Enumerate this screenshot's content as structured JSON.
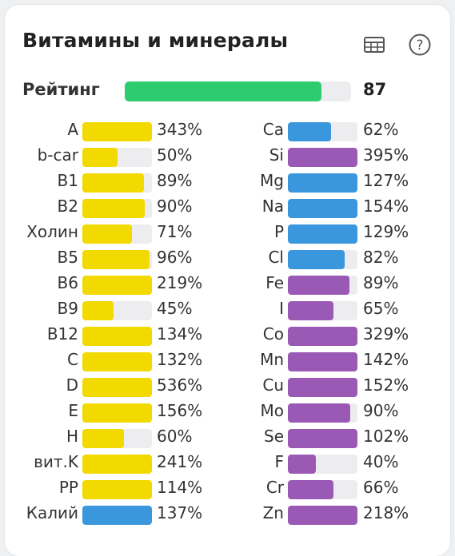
{
  "title": "Витамины и минералы",
  "icons": {
    "table": "table-icon",
    "help": "help-icon"
  },
  "colors": {
    "vitamin": "#f2d900",
    "blue": "#3a96dd",
    "purple": "#9b59b6",
    "rating": "#2ecc71",
    "track": "#ededef"
  },
  "rating": {
    "label": "Рейтинг",
    "value": "87",
    "fraction": 0.87
  },
  "vitamins": [
    {
      "label": "A",
      "pct": "343%",
      "fill": 1.0,
      "color": "yellow"
    },
    {
      "label": "b-car",
      "pct": "50%",
      "fill": 0.5,
      "color": "yellow"
    },
    {
      "label": "B1",
      "pct": "89%",
      "fill": 0.89,
      "color": "yellow"
    },
    {
      "label": "B2",
      "pct": "90%",
      "fill": 0.9,
      "color": "yellow"
    },
    {
      "label": "Холин",
      "pct": "71%",
      "fill": 0.71,
      "color": "yellow"
    },
    {
      "label": "B5",
      "pct": "96%",
      "fill": 0.96,
      "color": "yellow"
    },
    {
      "label": "B6",
      "pct": "219%",
      "fill": 1.0,
      "color": "yellow"
    },
    {
      "label": "B9",
      "pct": "45%",
      "fill": 0.45,
      "color": "yellow"
    },
    {
      "label": "B12",
      "pct": "134%",
      "fill": 1.0,
      "color": "yellow"
    },
    {
      "label": "C",
      "pct": "132%",
      "fill": 1.0,
      "color": "yellow"
    },
    {
      "label": "D",
      "pct": "536%",
      "fill": 1.0,
      "color": "yellow"
    },
    {
      "label": "E",
      "pct": "156%",
      "fill": 1.0,
      "color": "yellow"
    },
    {
      "label": "H",
      "pct": "60%",
      "fill": 0.6,
      "color": "yellow"
    },
    {
      "label": "вит.K",
      "pct": "241%",
      "fill": 1.0,
      "color": "yellow"
    },
    {
      "label": "PP",
      "pct": "114%",
      "fill": 1.0,
      "color": "yellow"
    },
    {
      "label": "Калий",
      "pct": "137%",
      "fill": 1.0,
      "color": "blue"
    }
  ],
  "minerals": [
    {
      "label": "Ca",
      "pct": "62%",
      "fill": 0.62,
      "color": "blue"
    },
    {
      "label": "Si",
      "pct": "395%",
      "fill": 1.0,
      "color": "purple"
    },
    {
      "label": "Mg",
      "pct": "127%",
      "fill": 1.0,
      "color": "blue"
    },
    {
      "label": "Na",
      "pct": "154%",
      "fill": 1.0,
      "color": "blue"
    },
    {
      "label": "P",
      "pct": "129%",
      "fill": 1.0,
      "color": "blue"
    },
    {
      "label": "Cl",
      "pct": "82%",
      "fill": 0.82,
      "color": "blue"
    },
    {
      "label": "Fe",
      "pct": "89%",
      "fill": 0.89,
      "color": "purple"
    },
    {
      "label": "I",
      "pct": "65%",
      "fill": 0.65,
      "color": "purple"
    },
    {
      "label": "Co",
      "pct": "329%",
      "fill": 1.0,
      "color": "purple"
    },
    {
      "label": "Mn",
      "pct": "142%",
      "fill": 1.0,
      "color": "purple"
    },
    {
      "label": "Cu",
      "pct": "152%",
      "fill": 1.0,
      "color": "purple"
    },
    {
      "label": "Mo",
      "pct": "90%",
      "fill": 0.9,
      "color": "purple"
    },
    {
      "label": "Se",
      "pct": "102%",
      "fill": 1.0,
      "color": "purple"
    },
    {
      "label": "F",
      "pct": "40%",
      "fill": 0.4,
      "color": "purple"
    },
    {
      "label": "Cr",
      "pct": "66%",
      "fill": 0.66,
      "color": "purple"
    },
    {
      "label": "Zn",
      "pct": "218%",
      "fill": 1.0,
      "color": "purple"
    }
  ]
}
